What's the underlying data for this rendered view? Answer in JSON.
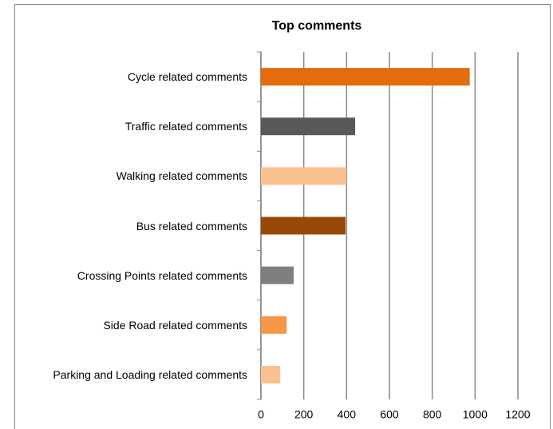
{
  "chart_data": {
    "type": "bar",
    "orientation": "horizontal",
    "title": "Top comments",
    "categories": [
      "Cycle related comments",
      "Traffic related comments",
      "Walking related comments",
      "Bus related comments",
      "Crossing Points related comments",
      "Side Road related comments",
      "Parking and Loading related comments"
    ],
    "values": [
      975,
      440,
      400,
      395,
      153,
      120,
      90
    ],
    "colors": [
      "#e46c0a",
      "#595959",
      "#fac090",
      "#984807",
      "#7f7f7f",
      "#f79646",
      "#fac090"
    ],
    "xlim": [
      0,
      1200
    ],
    "xticks": [
      0,
      200,
      400,
      600,
      800,
      1000,
      1200
    ],
    "grid": true
  }
}
